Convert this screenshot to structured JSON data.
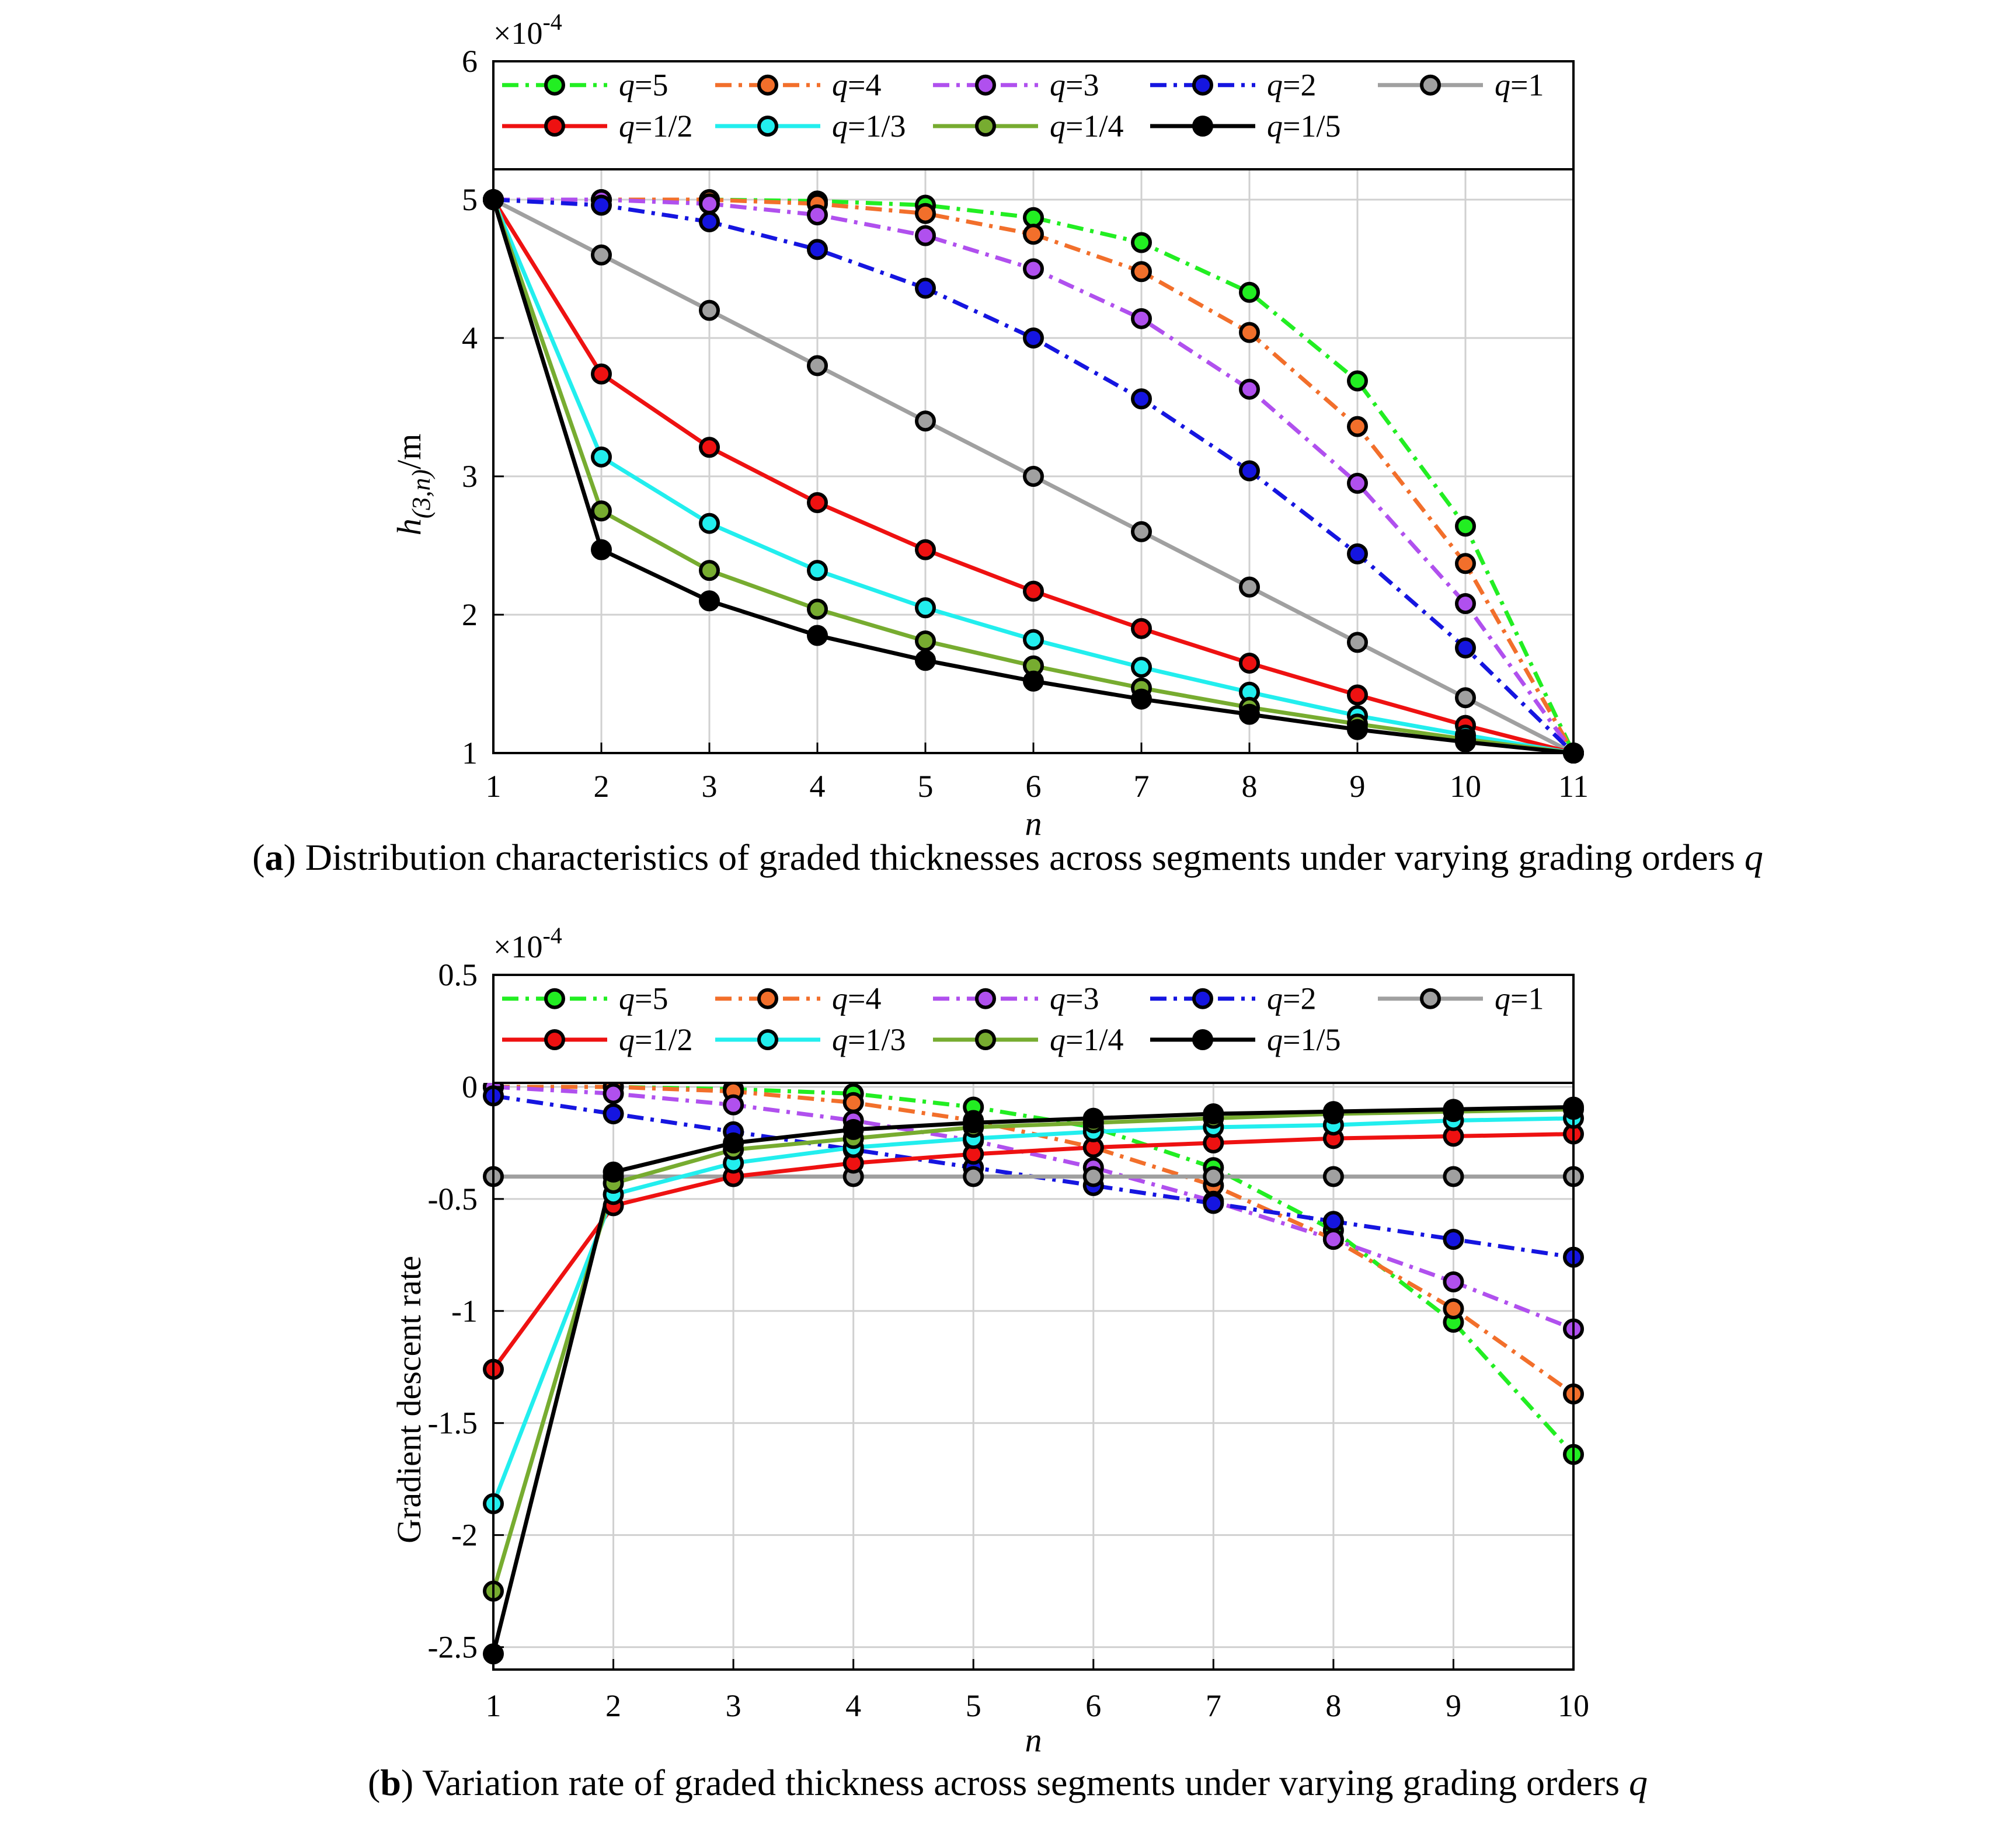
{
  "colors": {
    "q=5": "#22ee22",
    "q=4": "#f26f2b",
    "q=3": "#b050ee",
    "q=2": "#1515e0",
    "q=1": "#a0a0a0",
    "q=1/2": "#ee1111",
    "q=1/3": "#22eeee",
    "q=1/4": "#77ac30",
    "q=1/5": "#000000",
    "marker_edge": "#000000",
    "grid": "#d0d0d0"
  },
  "chart_data": [
    {
      "id": "a",
      "type": "line",
      "caption_letter": "a",
      "caption_text": "Distribution characteristics of graded thicknesses across segments under varying grading orders q",
      "caption_pre": " Distribution characteristics of graded thicknesses across segments under varying grading orders ",
      "caption_q": "q",
      "xlabel": "n",
      "ylabel_main": "h",
      "ylabel_sub": "(3,n)",
      "ylabel_unit": "/m",
      "y_exponent": "×10",
      "y_exponent_power": "-4",
      "xlim": [
        1,
        11
      ],
      "ylim": [
        1,
        6
      ],
      "legend_top": 5.2,
      "x_ticks": [
        "1",
        "2",
        "3",
        "4",
        "5",
        "6",
        "7",
        "8",
        "9",
        "10",
        "11"
      ],
      "y_ticks": [
        "1",
        "2",
        "3",
        "4",
        "5",
        "6"
      ],
      "x": [
        1,
        2,
        3,
        4,
        5,
        6,
        7,
        8,
        9,
        10,
        11
      ],
      "series": [
        {
          "name": "q=5",
          "label_q": "q",
          "label_v": "=5",
          "style": "dashdot",
          "values": [
            5.0,
            5.0,
            5.0,
            4.99,
            4.96,
            4.87,
            4.69,
            4.33,
            3.69,
            2.64,
            1.0
          ]
        },
        {
          "name": "q=4",
          "label_q": "q",
          "label_v": "=4",
          "style": "dashdot",
          "values": [
            5.0,
            5.0,
            5.0,
            4.97,
            4.9,
            4.75,
            4.48,
            4.04,
            3.36,
            2.37,
            1.0
          ]
        },
        {
          "name": "q=3",
          "label_q": "q",
          "label_v": "=3",
          "style": "dashdot",
          "values": [
            5.0,
            5.0,
            4.97,
            4.89,
            4.74,
            4.5,
            4.14,
            3.63,
            2.95,
            2.08,
            1.0
          ]
        },
        {
          "name": "q=2",
          "label_q": "q",
          "label_v": "=2",
          "style": "dashdot",
          "values": [
            5.0,
            4.96,
            4.84,
            4.64,
            4.36,
            4.0,
            3.56,
            3.04,
            2.44,
            1.76,
            1.0
          ]
        },
        {
          "name": "q=1",
          "label_q": "q",
          "label_v": "=1",
          "style": "solid",
          "values": [
            5.0,
            4.6,
            4.2,
            3.8,
            3.4,
            3.0,
            2.6,
            2.2,
            1.8,
            1.4,
            1.0
          ]
        },
        {
          "name": "q=1/2",
          "label_q": "q",
          "label_v": "=1/2",
          "style": "solid",
          "values": [
            5.0,
            3.74,
            3.21,
            2.81,
            2.47,
            2.17,
            1.9,
            1.65,
            1.42,
            1.2,
            1.0
          ]
        },
        {
          "name": "q=1/3",
          "label_q": "q",
          "label_v": "=1/3",
          "style": "solid",
          "values": [
            5.0,
            3.14,
            2.66,
            2.32,
            2.05,
            1.82,
            1.62,
            1.44,
            1.27,
            1.13,
            1.0
          ]
        },
        {
          "name": "q=1/4",
          "label_q": "q",
          "label_v": "=1/4",
          "style": "solid",
          "values": [
            5.0,
            2.75,
            2.32,
            2.04,
            1.81,
            1.63,
            1.47,
            1.33,
            1.21,
            1.1,
            1.0
          ]
        },
        {
          "name": "q=1/5",
          "label_q": "q",
          "label_v": "=1/5",
          "style": "solid",
          "values": [
            5.0,
            2.47,
            2.1,
            1.85,
            1.67,
            1.52,
            1.39,
            1.28,
            1.17,
            1.08,
            1.0
          ]
        }
      ]
    },
    {
      "id": "b",
      "type": "line",
      "caption_letter": "b",
      "caption_text": "Variation rate of graded thickness across segments under varying grading orders q",
      "caption_pre": " Variation rate of graded thickness across segments under varying grading orders ",
      "caption_q": "q",
      "xlabel": "n",
      "ylabel_main": "Gradient descent rate",
      "y_exponent": "×10",
      "y_exponent_power": "-4",
      "xlim": [
        1,
        10
      ],
      "ylim": [
        -2.6,
        0.5
      ],
      "legend_top": 0.0,
      "x_ticks": [
        "1",
        "2",
        "3",
        "4",
        "5",
        "6",
        "7",
        "8",
        "9",
        "10"
      ],
      "y_ticks": [
        "-2.5",
        "-2",
        "-1.5",
        "-1",
        "-0.5",
        "0",
        "0.5"
      ],
      "x": [
        1,
        2,
        3,
        4,
        5,
        6,
        7,
        8,
        9,
        10
      ],
      "series": [
        {
          "name": "q=5",
          "label_q": "q",
          "label_v": "=5",
          "style": "dashdot",
          "values": [
            0.0,
            0.0,
            -0.01,
            -0.03,
            -0.09,
            -0.18,
            -0.36,
            -0.64,
            -1.05,
            -1.64
          ]
        },
        {
          "name": "q=4",
          "label_q": "q",
          "label_v": "=4",
          "style": "dashdot",
          "values": [
            0.0,
            0.0,
            -0.02,
            -0.07,
            -0.15,
            -0.27,
            -0.44,
            -0.68,
            -0.99,
            -1.37
          ]
        },
        {
          "name": "q=3",
          "label_q": "q",
          "label_v": "=3",
          "style": "dashdot",
          "values": [
            0.0,
            -0.03,
            -0.08,
            -0.15,
            -0.24,
            -0.36,
            -0.51,
            -0.68,
            -0.87,
            -1.08
          ]
        },
        {
          "name": "q=2",
          "label_q": "q",
          "label_v": "=2",
          "style": "dashdot",
          "values": [
            -0.04,
            -0.12,
            -0.2,
            -0.28,
            -0.36,
            -0.44,
            -0.52,
            -0.6,
            -0.68,
            -0.76
          ]
        },
        {
          "name": "q=1",
          "label_q": "q",
          "label_v": "=1",
          "style": "solid",
          "values": [
            -0.4,
            -0.4,
            -0.4,
            -0.4,
            -0.4,
            -0.4,
            -0.4,
            -0.4,
            -0.4,
            -0.4
          ]
        },
        {
          "name": "q=1/2",
          "label_q": "q",
          "label_v": "=1/2",
          "style": "solid",
          "values": [
            -1.26,
            -0.53,
            -0.4,
            -0.34,
            -0.3,
            -0.27,
            -0.25,
            -0.23,
            -0.22,
            -0.21
          ]
        },
        {
          "name": "q=1/3",
          "label_q": "q",
          "label_v": "=1/3",
          "style": "solid",
          "values": [
            -1.86,
            -0.48,
            -0.34,
            -0.27,
            -0.23,
            -0.2,
            -0.18,
            -0.17,
            -0.15,
            -0.14
          ]
        },
        {
          "name": "q=1/4",
          "label_q": "q",
          "label_v": "=1/4",
          "style": "solid",
          "values": [
            -2.25,
            -0.43,
            -0.28,
            -0.23,
            -0.18,
            -0.16,
            -0.14,
            -0.12,
            -0.11,
            -0.1
          ]
        },
        {
          "name": "q=1/5",
          "label_q": "q",
          "label_v": "=1/5",
          "style": "solid",
          "values": [
            -2.53,
            -0.38,
            -0.25,
            -0.19,
            -0.16,
            -0.14,
            -0.12,
            -0.11,
            -0.1,
            -0.09
          ]
        }
      ]
    }
  ]
}
